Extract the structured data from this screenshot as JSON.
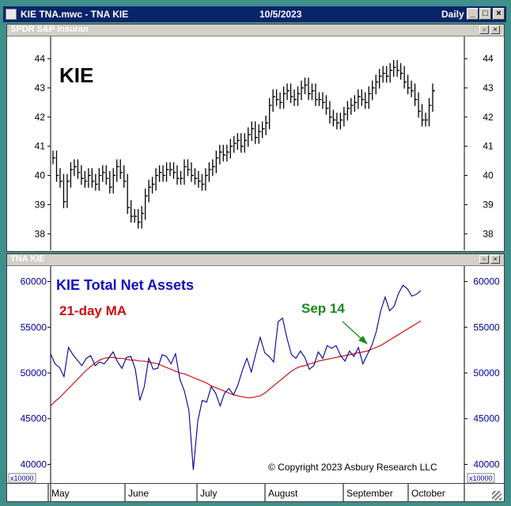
{
  "window": {
    "title": "KIE TNA.mwc - TNA KIE",
    "date": "10/5/2023",
    "period": "Daily",
    "controls": [
      "minimize-icon",
      "maximize-icon",
      "close-icon"
    ]
  },
  "top_pane": {
    "header": "SPDR S&P Insuran",
    "ticker_label": "KIE"
  },
  "bottom_pane": {
    "header": "TNA KIE",
    "title": "KIE Total Net Assets",
    "ma_label": "21-day MA",
    "annotation": "Sep 14",
    "copyright": "© Copyright 2023 Asbury Research LLC",
    "multiplier": "x10000"
  },
  "colors": {
    "price": "#000000",
    "tna": "#00009a",
    "ma": "#cc0000",
    "annotation": "#1a8a1a",
    "title_blue": "#1010c0",
    "ma_red": "#cc1010"
  },
  "x_axis": {
    "months": [
      "May",
      "June",
      "July",
      "August",
      "September",
      "October"
    ]
  },
  "chart_data": [
    {
      "type": "ohlc",
      "ylim": [
        37.6,
        44.6
      ],
      "yticks": [
        38,
        39,
        40,
        41,
        42,
        43,
        44
      ],
      "grid": false,
      "series": [
        {
          "values": [
            40.6,
            40.0,
            39.8,
            39.1,
            39.8,
            40.2,
            40.3,
            40.1,
            39.9,
            39.8,
            40.0,
            39.8,
            39.7,
            40.0,
            40.1,
            39.9,
            39.6,
            40.0,
            40.3,
            40.1,
            39.8,
            38.9,
            38.6,
            38.6,
            38.4,
            38.7,
            39.3,
            39.6,
            39.7,
            40.0,
            40.1,
            40.0,
            40.2,
            40.2,
            40.1,
            39.9,
            39.9,
            40.3,
            40.2,
            40.0,
            39.9,
            39.8,
            39.7,
            40.0,
            40.2,
            40.3,
            40.6,
            40.8,
            40.7,
            40.8,
            41.0,
            41.1,
            41.2,
            41.0,
            41.2,
            41.4,
            41.6,
            41.3,
            41.5,
            41.6,
            41.8,
            42.4,
            42.7,
            42.6,
            42.5,
            42.8,
            42.9,
            42.7,
            42.6,
            42.8,
            43.0,
            43.1,
            42.8,
            42.9,
            42.6,
            42.6,
            42.5,
            42.3,
            42.0,
            41.9,
            41.8,
            41.9,
            42.1,
            42.3,
            42.4,
            42.5,
            42.7,
            42.6,
            42.5,
            42.8,
            43.0,
            43.2,
            43.4,
            43.5,
            43.4,
            43.6,
            43.7,
            43.6,
            43.5,
            43.2,
            43.0,
            42.9,
            42.6,
            42.2,
            41.9,
            41.9,
            42.4,
            42.9
          ]
        }
      ]
    },
    {
      "type": "line",
      "ylim": [
        39000,
        61000
      ],
      "yticks": [
        40000,
        45000,
        50000,
        55000,
        60000
      ],
      "grid": false,
      "series": [
        {
          "name": "KIE Total Net Assets",
          "values": [
            52100,
            51000,
            50600,
            49600,
            52800,
            52000,
            51400,
            50800,
            51600,
            51900,
            50800,
            51200,
            51000,
            51600,
            52300,
            51200,
            50500,
            51700,
            51800,
            50400,
            47000,
            48500,
            51600,
            50400,
            50500,
            52000,
            51800,
            51000,
            52100,
            49300,
            48000,
            45900,
            39400,
            44800,
            47000,
            46800,
            48500,
            47800,
            46400,
            47800,
            48300,
            47600,
            48700,
            50300,
            51600,
            50100,
            52100,
            53900,
            52200,
            51800,
            51200,
            55600,
            56000,
            53800,
            52000,
            51600,
            52400,
            51700,
            50400,
            50800,
            52300,
            51600,
            53000,
            52700,
            53000,
            51900,
            51300,
            52400,
            51800,
            52800,
            51000,
            52000,
            53000,
            54500,
            56800,
            58300,
            56800,
            57300,
            58700,
            59600,
            59200,
            58400,
            58600,
            59000
          ]
        },
        {
          "name": "21-day MA",
          "values": [
            46400,
            46900,
            47300,
            47800,
            48300,
            48800,
            49300,
            49800,
            50300,
            50700,
            51100,
            51400,
            51600,
            51700,
            51700,
            51600,
            51600,
            51500,
            51400,
            51400,
            51300,
            51300,
            51200,
            51100,
            51000,
            50800,
            50600,
            50400,
            50200,
            50000,
            49900,
            49700,
            49500,
            49300,
            49100,
            48900,
            48600,
            48400,
            48200,
            48000,
            47800,
            47600,
            47500,
            47400,
            47300,
            47300,
            47400,
            47500,
            47800,
            48200,
            48600,
            49000,
            49400,
            49800,
            50200,
            50500,
            50700,
            50800,
            51000,
            51100,
            51300,
            51400,
            51500,
            51600,
            51700,
            51800,
            51900,
            52000,
            52100,
            52200,
            52300,
            52400,
            52600,
            52800,
            53000,
            53300,
            53600,
            53900,
            54200,
            54500,
            54800,
            55100,
            55400,
            55700
          ]
        }
      ]
    }
  ]
}
